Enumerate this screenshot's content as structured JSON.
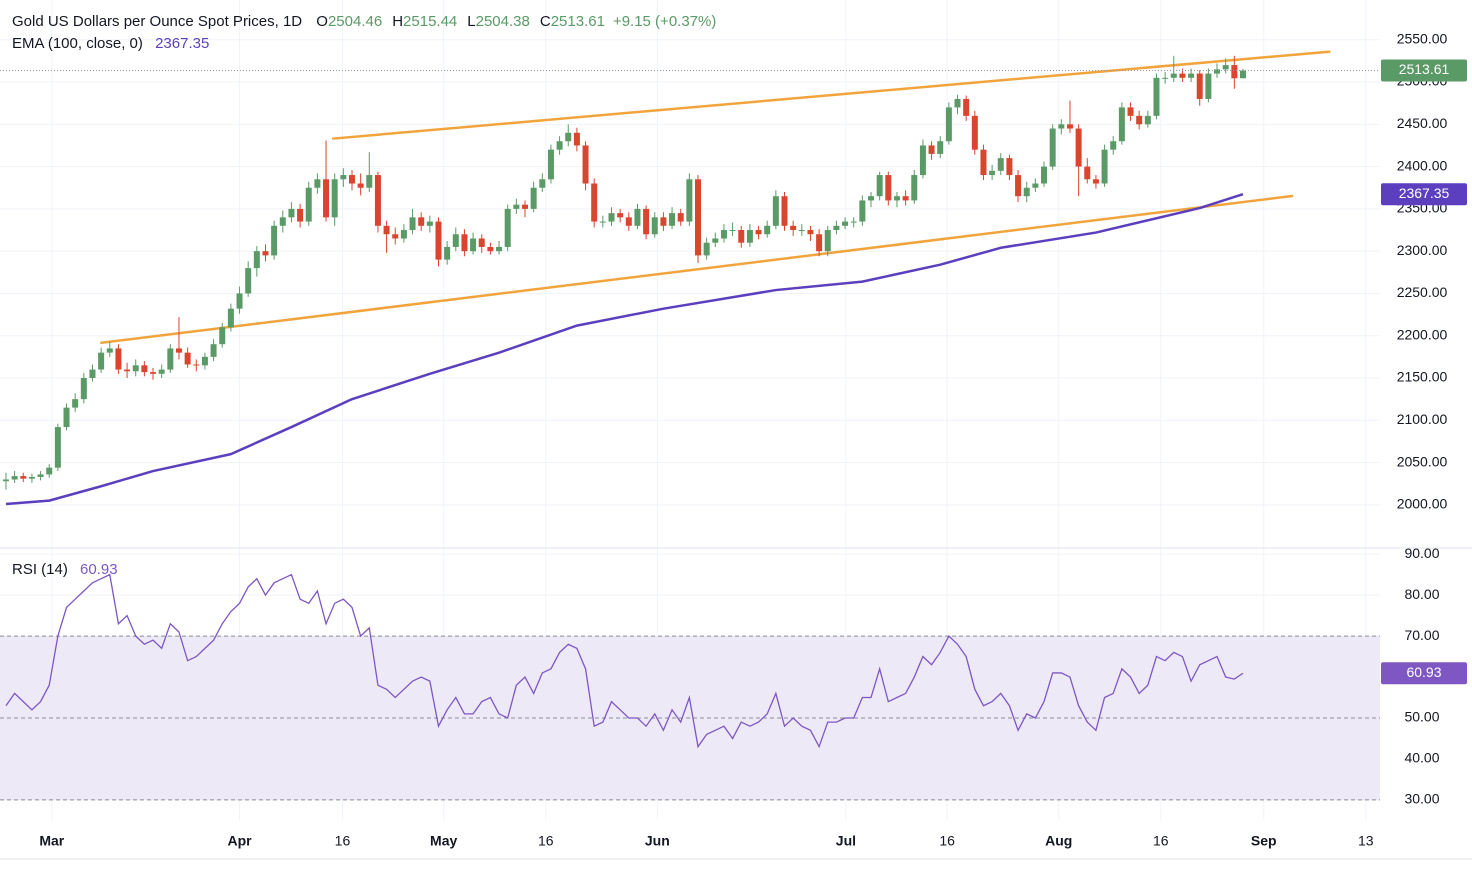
{
  "chart_data": [
    {
      "type": "candlestick",
      "title": "Gold US Dollars per Ounce Spot Prices, 1D",
      "ohlc_letters": [
        "O",
        "H",
        "L",
        "C"
      ],
      "change_label": "+9.15 (+0.37%)",
      "up_color": "#5a9a66",
      "down_color": "#d9452f",
      "ohlc": [
        [
          2028,
          2038,
          2018,
          2030
        ],
        [
          2030,
          2040,
          2026,
          2034
        ],
        [
          2034,
          2038,
          2027,
          2031
        ],
        [
          2031,
          2037,
          2026,
          2033
        ],
        [
          2033,
          2040,
          2029,
          2036
        ],
        [
          2036,
          2048,
          2032,
          2044
        ],
        [
          2044,
          2096,
          2040,
          2092
        ],
        [
          2092,
          2120,
          2088,
          2115
        ],
        [
          2115,
          2132,
          2110,
          2125
        ],
        [
          2125,
          2156,
          2120,
          2150
        ],
        [
          2150,
          2166,
          2146,
          2160
        ],
        [
          2160,
          2186,
          2156,
          2180
        ],
        [
          2180,
          2193,
          2175,
          2185
        ],
        [
          2185,
          2190,
          2155,
          2160
        ],
        [
          2160,
          2168,
          2150,
          2158
        ],
        [
          2158,
          2172,
          2152,
          2165
        ],
        [
          2165,
          2170,
          2152,
          2157
        ],
        [
          2157,
          2162,
          2148,
          2155
        ],
        [
          2155,
          2166,
          2150,
          2160
        ],
        [
          2160,
          2190,
          2156,
          2185
        ],
        [
          2185,
          2222,
          2172,
          2180
        ],
        [
          2180,
          2186,
          2162,
          2166
        ],
        [
          2166,
          2172,
          2158,
          2165
        ],
        [
          2165,
          2180,
          2160,
          2175
        ],
        [
          2175,
          2196,
          2170,
          2190
        ],
        [
          2190,
          2215,
          2186,
          2210
        ],
        [
          2210,
          2238,
          2205,
          2232
        ],
        [
          2232,
          2258,
          2226,
          2250
        ],
        [
          2250,
          2288,
          2246,
          2280
        ],
        [
          2280,
          2306,
          2270,
          2300
        ],
        [
          2300,
          2308,
          2288,
          2295
        ],
        [
          2295,
          2336,
          2290,
          2330
        ],
        [
          2330,
          2348,
          2322,
          2340
        ],
        [
          2340,
          2358,
          2334,
          2350
        ],
        [
          2350,
          2356,
          2328,
          2335
        ],
        [
          2335,
          2382,
          2330,
          2375
        ],
        [
          2375,
          2392,
          2368,
          2385
        ],
        [
          2385,
          2431,
          2335,
          2340
        ],
        [
          2340,
          2392,
          2330,
          2385
        ],
        [
          2385,
          2398,
          2376,
          2390
        ],
        [
          2390,
          2396,
          2372,
          2380
        ],
        [
          2380,
          2392,
          2366,
          2375
        ],
        [
          2375,
          2417,
          2370,
          2390
        ],
        [
          2390,
          2394,
          2322,
          2330
        ],
        [
          2330,
          2336,
          2298,
          2320
        ],
        [
          2320,
          2328,
          2308,
          2315
        ],
        [
          2315,
          2332,
          2310,
          2325
        ],
        [
          2325,
          2350,
          2320,
          2340
        ],
        [
          2340,
          2346,
          2324,
          2330
        ],
        [
          2330,
          2342,
          2322,
          2335
        ],
        [
          2335,
          2340,
          2282,
          2290
        ],
        [
          2290,
          2312,
          2284,
          2305
        ],
        [
          2305,
          2328,
          2300,
          2320
        ],
        [
          2320,
          2326,
          2294,
          2300
        ],
        [
          2300,
          2322,
          2296,
          2315
        ],
        [
          2315,
          2320,
          2298,
          2305
        ],
        [
          2305,
          2310,
          2296,
          2300
        ],
        [
          2300,
          2312,
          2296,
          2305
        ],
        [
          2305,
          2355,
          2300,
          2350
        ],
        [
          2350,
          2362,
          2344,
          2355
        ],
        [
          2355,
          2360,
          2340,
          2350
        ],
        [
          2350,
          2382,
          2346,
          2375
        ],
        [
          2375,
          2392,
          2370,
          2385
        ],
        [
          2385,
          2426,
          2380,
          2420
        ],
        [
          2420,
          2436,
          2414,
          2430
        ],
        [
          2430,
          2450,
          2424,
          2440
        ],
        [
          2440,
          2446,
          2418,
          2425
        ],
        [
          2425,
          2430,
          2372,
          2380
        ],
        [
          2380,
          2386,
          2328,
          2335
        ],
        [
          2335,
          2342,
          2328,
          2335
        ],
        [
          2335,
          2352,
          2330,
          2345
        ],
        [
          2345,
          2350,
          2334,
          2340
        ],
        [
          2340,
          2346,
          2324,
          2330
        ],
        [
          2330,
          2356,
          2326,
          2350
        ],
        [
          2350,
          2354,
          2314,
          2320
        ],
        [
          2320,
          2346,
          2316,
          2340
        ],
        [
          2340,
          2346,
          2324,
          2330
        ],
        [
          2330,
          2352,
          2326,
          2345
        ],
        [
          2345,
          2350,
          2330,
          2335
        ],
        [
          2335,
          2392,
          2330,
          2385
        ],
        [
          2385,
          2390,
          2286,
          2295
        ],
        [
          2295,
          2316,
          2290,
          2310
        ],
        [
          2310,
          2322,
          2305,
          2315
        ],
        [
          2315,
          2332,
          2310,
          2325
        ],
        [
          2325,
          2334,
          2318,
          2325
        ],
        [
          2325,
          2330,
          2304,
          2310
        ],
        [
          2310,
          2332,
          2305,
          2325
        ],
        [
          2325,
          2330,
          2314,
          2320
        ],
        [
          2320,
          2336,
          2316,
          2330
        ],
        [
          2330,
          2372,
          2326,
          2365
        ],
        [
          2365,
          2370,
          2324,
          2330
        ],
        [
          2330,
          2336,
          2318,
          2325
        ],
        [
          2325,
          2332,
          2318,
          2325
        ],
        [
          2325,
          2330,
          2312,
          2320
        ],
        [
          2320,
          2326,
          2294,
          2300
        ],
        [
          2300,
          2330,
          2294,
          2325
        ],
        [
          2325,
          2336,
          2320,
          2330
        ],
        [
          2330,
          2340,
          2326,
          2335
        ],
        [
          2335,
          2340,
          2328,
          2335
        ],
        [
          2335,
          2366,
          2330,
          2360
        ],
        [
          2360,
          2370,
          2352,
          2365
        ],
        [
          2365,
          2394,
          2360,
          2390
        ],
        [
          2390,
          2394,
          2354,
          2360
        ],
        [
          2360,
          2370,
          2352,
          2365
        ],
        [
          2365,
          2372,
          2354,
          2360
        ],
        [
          2360,
          2396,
          2356,
          2390
        ],
        [
          2390,
          2432,
          2386,
          2425
        ],
        [
          2425,
          2430,
          2408,
          2415
        ],
        [
          2415,
          2436,
          2410,
          2430
        ],
        [
          2430,
          2476,
          2426,
          2470
        ],
        [
          2470,
          2485,
          2462,
          2480
        ],
        [
          2480,
          2484,
          2454,
          2460
        ],
        [
          2460,
          2466,
          2414,
          2420
        ],
        [
          2420,
          2426,
          2384,
          2390
        ],
        [
          2390,
          2402,
          2384,
          2395
        ],
        [
          2395,
          2416,
          2390,
          2410
        ],
        [
          2410,
          2414,
          2384,
          2390
        ],
        [
          2390,
          2396,
          2358,
          2365
        ],
        [
          2365,
          2382,
          2358,
          2375
        ],
        [
          2375,
          2386,
          2370,
          2380
        ],
        [
          2380,
          2406,
          2376,
          2400
        ],
        [
          2400,
          2450,
          2396,
          2445
        ],
        [
          2445,
          2456,
          2438,
          2450
        ],
        [
          2450,
          2478,
          2440,
          2445
        ],
        [
          2445,
          2450,
          2365,
          2400
        ],
        [
          2400,
          2410,
          2380,
          2385
        ],
        [
          2385,
          2390,
          2374,
          2380
        ],
        [
          2380,
          2426,
          2376,
          2420
        ],
        [
          2420,
          2436,
          2414,
          2430
        ],
        [
          2430,
          2476,
          2426,
          2470
        ],
        [
          2470,
          2476,
          2454,
          2460
        ],
        [
          2460,
          2466,
          2444,
          2450
        ],
        [
          2450,
          2466,
          2446,
          2460
        ],
        [
          2460,
          2510,
          2456,
          2505
        ],
        [
          2505,
          2512,
          2498,
          2505
        ],
        [
          2505,
          2531,
          2500,
          2510
        ],
        [
          2510,
          2516,
          2500,
          2505
        ],
        [
          2505,
          2516,
          2500,
          2510
        ],
        [
          2510,
          2514,
          2472,
          2480
        ],
        [
          2480,
          2516,
          2476,
          2510
        ],
        [
          2510,
          2522,
          2505,
          2515
        ],
        [
          2515,
          2528,
          2510,
          2520
        ],
        [
          2520,
          2531,
          2492,
          2504.46
        ],
        [
          2504.46,
          2515.44,
          2504.38,
          2513.61
        ]
      ],
      "xlim": [
        -0.69,
        158.84
      ],
      "xticks": [
        {
          "value": 5.3,
          "label": "Mar"
        },
        {
          "value": 27,
          "label": "Apr"
        },
        {
          "value": 38.9,
          "label": "16"
        },
        {
          "value": 50.6,
          "label": "May"
        },
        {
          "value": 62.4,
          "label": "16"
        },
        {
          "value": 75.3,
          "label": "Jun"
        },
        {
          "value": 97.1,
          "label": "Jul"
        },
        {
          "value": 108.8,
          "label": "16"
        },
        {
          "value": 121.7,
          "label": "Aug"
        },
        {
          "value": 133.5,
          "label": "16"
        },
        {
          "value": 145.4,
          "label": "Sep"
        },
        {
          "value": 157.2,
          "label": "13"
        }
      ],
      "ylim": [
        1949,
        2597
      ],
      "yticks": [
        {
          "value": 2000,
          "label": "2000.00"
        },
        {
          "value": 2050,
          "label": "2050.00"
        },
        {
          "value": 2100,
          "label": "2100.00"
        },
        {
          "value": 2150,
          "label": "2150.00"
        },
        {
          "value": 2200,
          "label": "2200.00"
        },
        {
          "value": 2250,
          "label": "2250.00"
        },
        {
          "value": 2300,
          "label": "2300.00"
        },
        {
          "value": 2350,
          "label": "2350.00"
        },
        {
          "value": 2400,
          "label": "2400.00"
        },
        {
          "value": 2450,
          "label": "2450.00"
        },
        {
          "value": 2500,
          "label": "2500.00"
        },
        {
          "value": 2550,
          "label": "2550.00"
        }
      ],
      "grid": true,
      "series": [
        {
          "name": "EMA (100, close, 0)",
          "color": "#5b3fbf",
          "x": [
            0,
            5,
            11,
            17,
            26,
            33,
            40,
            49,
            57,
            66,
            76,
            89,
            99,
            108,
            115,
            126,
            138,
            143
          ],
          "values": [
            2001,
            2005,
            2022,
            2040,
            2060,
            2092,
            2125,
            2155,
            2180,
            2212,
            2232,
            2254,
            2264,
            2284,
            2304,
            2322,
            2351,
            2367.35
          ]
        }
      ],
      "trendlines": [
        {
          "color": "#f2a43c",
          "x": [
            37.7,
            153.1
          ],
          "values": [
            2433,
            2536
          ]
        },
        {
          "color": "#f2a43c",
          "x": [
            10.9,
            148.8
          ],
          "values": [
            2191.5,
            2365.4
          ]
        }
      ]
    },
    {
      "type": "line",
      "series": [
        {
          "name": "RSI (14)",
          "color": "#7e57c2",
          "values": [
            53,
            56,
            54,
            52,
            54,
            58,
            70,
            77,
            79,
            81,
            83,
            84,
            85,
            73,
            75,
            70,
            68,
            69,
            67,
            73,
            71,
            64,
            65,
            67,
            69,
            73,
            76,
            78,
            82,
            84,
            80,
            83,
            84,
            85,
            79,
            78,
            81,
            73,
            78,
            79,
            77,
            70,
            72,
            58,
            57,
            55,
            57,
            59,
            60,
            59,
            48,
            52,
            55,
            51,
            51,
            54,
            55,
            51,
            50,
            58,
            60,
            56,
            61,
            62,
            66,
            68,
            67,
            62,
            48,
            49,
            54,
            52,
            50,
            50,
            48,
            51,
            47,
            52,
            49,
            55,
            43,
            46,
            47,
            48,
            45,
            49,
            48,
            49,
            51,
            56,
            48,
            50,
            48,
            47,
            43,
            49,
            49,
            50,
            50,
            55,
            55,
            62,
            54,
            55,
            56,
            60,
            65,
            63,
            66,
            70,
            68,
            65,
            57,
            53,
            54,
            56,
            53,
            47,
            51,
            50,
            54,
            61,
            61,
            60,
            53,
            49,
            47,
            55,
            56,
            62,
            60,
            56,
            58,
            65,
            64,
            66,
            65,
            59,
            63,
            64,
            65,
            60,
            59.5,
            60.93
          ]
        }
      ],
      "xlim": [
        -0.69,
        158.84
      ],
      "ylim": [
        25.1,
        91.5
      ],
      "yticks": [
        {
          "value": 30,
          "label": "30.00"
        },
        {
          "value": 40,
          "label": "40.00"
        },
        {
          "value": 50,
          "label": "50.00"
        },
        {
          "value": 60,
          "label": "60.00"
        },
        {
          "value": 70,
          "label": "70.00"
        },
        {
          "value": 80,
          "label": "80.00"
        },
        {
          "value": 90,
          "label": "90.00"
        }
      ],
      "band": [
        30,
        70
      ],
      "band_color": "#ede9f7",
      "levels": [
        30,
        50,
        70
      ]
    }
  ]
}
